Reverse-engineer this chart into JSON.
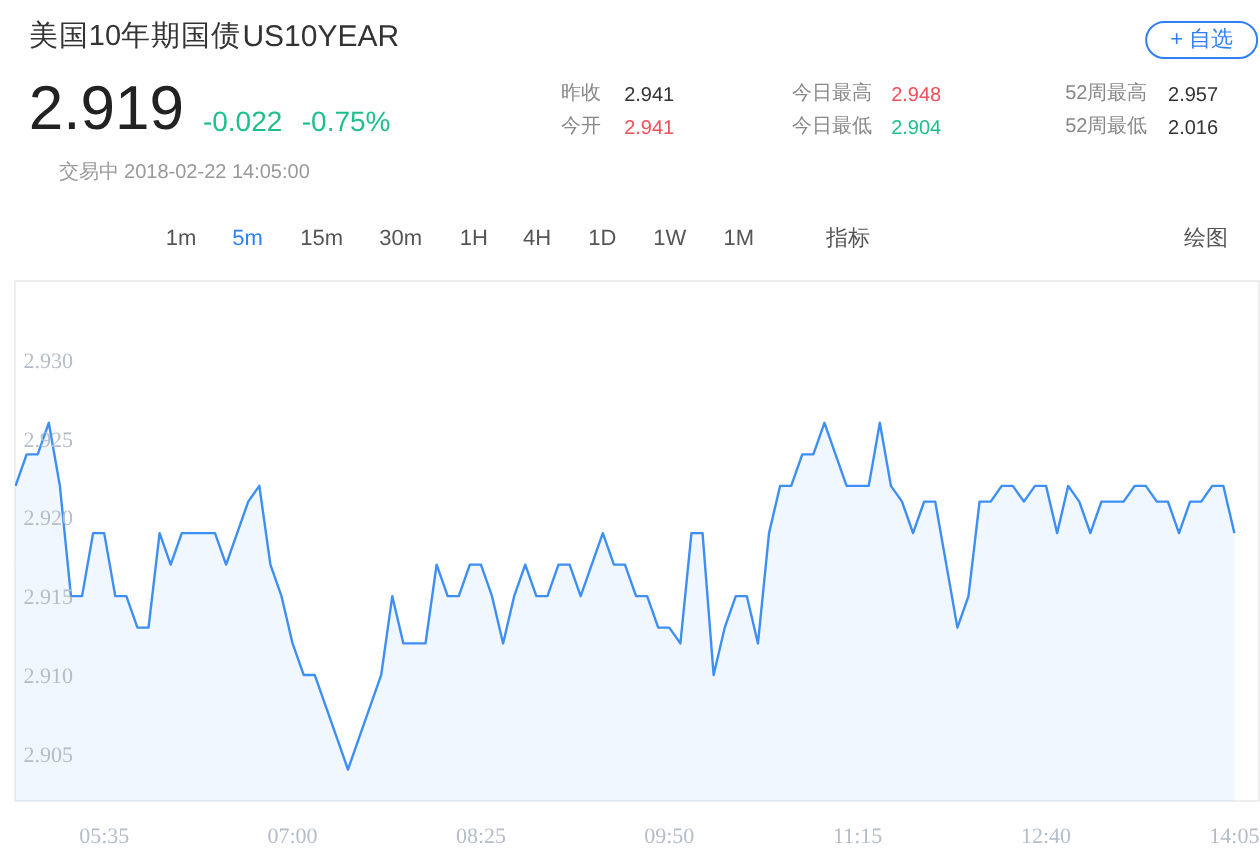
{
  "chart_data": {
    "type": "area",
    "title": "美国10年期国债",
    "subtitle": "US10YEAR",
    "annotations": [
      "+ 自选",
      "2.919",
      "-0.022",
      "-0.75%",
      "昨收",
      "2.941",
      "今日最高",
      "2.948",
      "52周最高",
      "2.957",
      "今开",
      "2.941",
      "今日最低",
      "2.904",
      "52周最低",
      "2.016",
      "交易中 2018-02-22 14:05:00",
      "1m",
      "5m",
      "15m",
      "30m",
      "1H",
      "4H",
      "1D",
      "1W",
      "1M",
      "指标",
      "绘图"
    ],
    "categories": [
      null,
      null,
      null,
      null,
      null,
      null,
      null,
      null,
      "05:35",
      null,
      null,
      null,
      null,
      null,
      null,
      null,
      null,
      null,
      null,
      null,
      null,
      null,
      null,
      null,
      null,
      "07:00",
      null,
      null,
      null,
      null,
      null,
      null,
      null,
      null,
      null,
      null,
      null,
      null,
      null,
      null,
      null,
      null,
      "08:25",
      null,
      null,
      null,
      null,
      null,
      null,
      null,
      null,
      null,
      null,
      null,
      null,
      null,
      null,
      null,
      null,
      "09:50",
      null,
      null,
      null,
      null,
      null,
      null,
      null,
      null,
      null,
      null,
      null,
      null,
      null,
      null,
      null,
      null,
      "11:15",
      null,
      null,
      null,
      null,
      null,
      null,
      null,
      null,
      null,
      null,
      null,
      null,
      null,
      null,
      null,
      null,
      "12:40",
      null,
      null,
      null,
      null,
      null,
      null,
      null,
      null,
      null,
      null,
      null,
      null,
      null,
      null,
      null,
      null,
      "14:05"
    ],
    "series": [
      {
        "color": "#3d8ff5",
        "values": [
          2.922,
          2.924,
          2.924,
          2.926,
          2.922,
          2.915,
          2.915,
          2.919,
          2.919,
          2.915,
          2.915,
          2.913,
          2.913,
          2.919,
          2.917,
          2.919,
          2.919,
          2.919,
          2.919,
          2.917,
          2.919,
          2.921,
          2.922,
          2.917,
          2.915,
          2.912,
          2.91,
          2.91,
          2.908,
          2.906,
          2.904,
          2.906,
          2.908,
          2.91,
          2.915,
          2.912,
          2.912,
          2.912,
          2.917,
          2.915,
          2.915,
          2.917,
          2.917,
          2.915,
          2.912,
          2.915,
          2.917,
          2.915,
          2.915,
          2.917,
          2.917,
          2.915,
          2.917,
          2.919,
          2.917,
          2.917,
          2.915,
          2.915,
          2.913,
          2.913,
          2.912,
          2.919,
          2.919,
          2.91,
          2.913,
          2.915,
          2.915,
          2.912,
          2.919,
          2.922,
          2.922,
          2.924,
          2.924,
          2.926,
          2.924,
          2.922,
          2.922,
          2.922,
          2.926,
          2.922,
          2.921,
          2.919,
          2.921,
          2.921,
          2.917,
          2.913,
          2.915,
          2.921,
          2.921,
          2.922,
          2.922,
          2.921,
          2.922,
          2.922,
          2.919,
          2.922,
          2.921,
          2.919,
          2.921,
          2.921,
          2.921,
          2.922,
          2.922,
          2.921,
          2.921,
          2.919,
          2.921,
          2.921,
          2.922,
          2.922,
          2.919
        ]
      }
    ],
    "ylim": [
      2.902,
      2.935
    ],
    "yticks": [
      {
        "value": 2.905,
        "label": "2.905"
      },
      {
        "value": 2.91,
        "label": "2.910"
      },
      {
        "value": 2.915,
        "label": "2.915"
      },
      {
        "value": 2.92,
        "label": "2.920"
      },
      {
        "value": 2.925,
        "label": "2.925"
      },
      {
        "value": 2.93,
        "label": "2.930"
      }
    ]
  }
}
